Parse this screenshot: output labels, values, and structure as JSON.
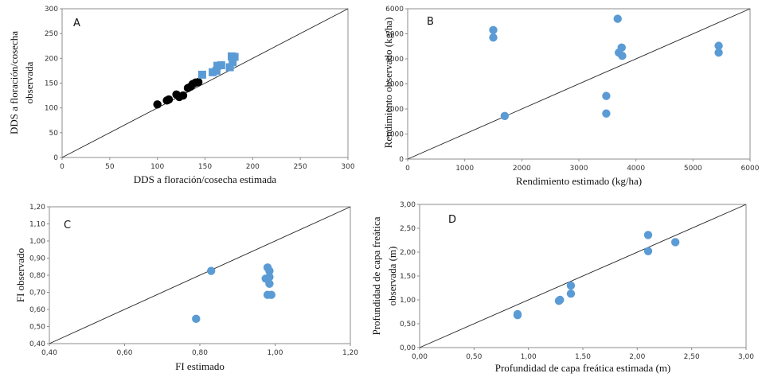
{
  "chart_data": [
    {
      "id": "A",
      "type": "scatter",
      "letter": "A",
      "xlabel": "DDS a floración/cosecha  estimada",
      "ylabel": [
        "DDS a floración/cosecha",
        "observada"
      ],
      "xlim": [
        0,
        300
      ],
      "ylim": [
        0,
        300
      ],
      "xticks": [
        0,
        50,
        100,
        150,
        200,
        250,
        300
      ],
      "yticks": [
        0,
        50,
        100,
        150,
        200,
        250,
        300
      ],
      "tick_labels_x": [
        "0",
        "50",
        "100",
        "150",
        "200",
        "250",
        "300"
      ],
      "tick_labels_y": [
        "0",
        "50",
        "100",
        "150",
        "200",
        "250",
        "300"
      ],
      "identity_line": true,
      "series": [
        {
          "marker": "circle",
          "color": "#000000",
          "points": [
            [
              100,
              107
            ],
            [
              110,
              115
            ],
            [
              112,
              117
            ],
            [
              120,
              127
            ],
            [
              123,
              122
            ],
            [
              127,
              125
            ],
            [
              132,
              140
            ],
            [
              135,
              143
            ],
            [
              137,
              148
            ],
            [
              140,
              151
            ],
            [
              143,
              152
            ]
          ]
        },
        {
          "marker": "square",
          "color": "#5b9bd5",
          "points": [
            [
              147,
              167
            ],
            [
              158,
              172
            ],
            [
              162,
              175
            ],
            [
              163,
              185
            ],
            [
              167,
              186
            ],
            [
              176,
              182
            ],
            [
              178,
              204
            ],
            [
              181,
              203
            ],
            [
              179,
              192
            ]
          ]
        }
      ]
    },
    {
      "id": "B",
      "type": "scatter",
      "letter": "B",
      "xlabel": "Rendimiento estimado (kg/ha)",
      "ylabel": [
        "Rendimiento observado (kg/ha)"
      ],
      "xlim": [
        0,
        6000
      ],
      "ylim": [
        0,
        6000
      ],
      "xticks": [
        0,
        1000,
        2000,
        3000,
        4000,
        5000,
        6000
      ],
      "yticks": [
        0,
        1000,
        2000,
        3000,
        4000,
        5000,
        6000
      ],
      "tick_labels_x": [
        "0",
        "1000",
        "2000",
        "3000",
        "4000",
        "5000",
        "6000"
      ],
      "tick_labels_y": [
        "0",
        "1000",
        "2000",
        "3000",
        "4000",
        "5000",
        "6000"
      ],
      "identity_line": true,
      "series": [
        {
          "marker": "circle",
          "color": "#5b9bd5",
          "points": [
            [
              1500,
              5150
            ],
            [
              1500,
              4850
            ],
            [
              1700,
              1720
            ],
            [
              3480,
              2520
            ],
            [
              3480,
              1820
            ],
            [
              3680,
              5600
            ],
            [
              3700,
              4250
            ],
            [
              3750,
              4450
            ],
            [
              3760,
              4120
            ],
            [
              5450,
              4520
            ],
            [
              5450,
              4250
            ]
          ]
        }
      ]
    },
    {
      "id": "C",
      "type": "scatter",
      "letter": "C",
      "xlabel": "FI estimado",
      "ylabel": [
        "FI observado"
      ],
      "xlim": [
        0.4,
        1.2
      ],
      "ylim": [
        0.4,
        1.2
      ],
      "xticks": [
        0.4,
        0.6,
        0.8,
        1.0,
        1.2
      ],
      "yticks": [
        0.4,
        0.5,
        0.6,
        0.7,
        0.8,
        0.9,
        1.0,
        1.1,
        1.2
      ],
      "tick_labels_x": [
        "0,40",
        "0,60",
        "0,80",
        "1,00",
        "1,20"
      ],
      "tick_labels_y": [
        "0,40",
        "0,50",
        "0,60",
        "0,70",
        "0,80",
        "0,90",
        "1,00",
        "1,10",
        "1,20"
      ],
      "identity_line": true,
      "series": [
        {
          "marker": "circle",
          "color": "#5b9bd5",
          "points": [
            [
              0.79,
              0.545
            ],
            [
              0.83,
              0.825
            ],
            [
              0.975,
              0.78
            ],
            [
              0.98,
              0.845
            ],
            [
              0.985,
              0.825
            ],
            [
              0.985,
              0.79
            ],
            [
              0.985,
              0.75
            ],
            [
              0.98,
              0.685
            ],
            [
              0.99,
              0.685
            ]
          ]
        }
      ]
    },
    {
      "id": "D",
      "type": "scatter",
      "letter": "D",
      "xlabel": "Profundidad de capa freática estimada (m)",
      "ylabel": [
        "Profundidad de capa freática",
        "observada  (m)"
      ],
      "xlim": [
        0,
        3
      ],
      "ylim": [
        0,
        3
      ],
      "xticks": [
        0,
        0.5,
        1.0,
        1.5,
        2.0,
        2.5,
        3.0
      ],
      "yticks": [
        0,
        0.5,
        1.0,
        1.5,
        2.0,
        2.5,
        3.0
      ],
      "tick_labels_x": [
        "0,00",
        "0,50",
        "1,00",
        "1,50",
        "2,00",
        "2,50",
        "3,00"
      ],
      "tick_labels_y": [
        "0,00",
        "0,50",
        "1,00",
        "1,50",
        "2,00",
        "2,50",
        "3,00"
      ],
      "identity_line": true,
      "series": [
        {
          "marker": "circle",
          "color": "#5b9bd5",
          "points": [
            [
              0.9,
              0.68
            ],
            [
              0.9,
              0.7
            ],
            [
              1.28,
              0.98
            ],
            [
              1.29,
              1.0
            ],
            [
              1.39,
              1.13
            ],
            [
              1.39,
              1.3
            ],
            [
              2.1,
              2.36
            ],
            [
              2.1,
              2.02
            ],
            [
              2.35,
              2.21
            ]
          ]
        }
      ]
    }
  ]
}
